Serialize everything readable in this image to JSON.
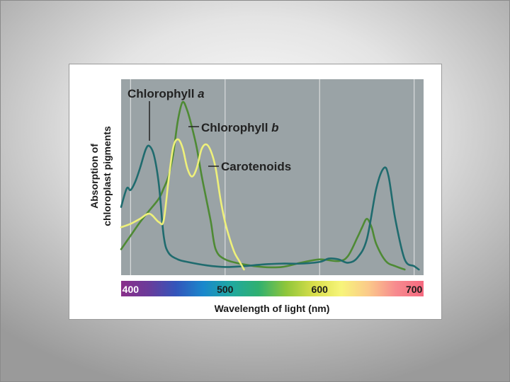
{
  "chart_data": {
    "type": "line",
    "xlabel": "Wavelength of light (nm)",
    "ylabel_line1": "Absorption of",
    "ylabel_line2": "chloroplast pigments",
    "xlim": [
      390,
      710
    ],
    "ylim": [
      0,
      1
    ],
    "x_ticks": [
      400,
      500,
      600,
      700
    ],
    "x_tick_labels": [
      "400",
      "500",
      "600",
      "700"
    ],
    "grid": true,
    "plot_background": "#9aa3a6",
    "series": [
      {
        "name": "Chlorophyll a",
        "name_main": "Chlorophyll ",
        "name_italic": "a",
        "color": "#1f6b6e",
        "points": [
          [
            390,
            0.37
          ],
          [
            396,
            0.48
          ],
          [
            400,
            0.47
          ],
          [
            405,
            0.52
          ],
          [
            410,
            0.6
          ],
          [
            416,
            0.71
          ],
          [
            420,
            0.73
          ],
          [
            425,
            0.67
          ],
          [
            430,
            0.5
          ],
          [
            435,
            0.2
          ],
          [
            440,
            0.1
          ],
          [
            450,
            0.06
          ],
          [
            460,
            0.045
          ],
          [
            480,
            0.025
          ],
          [
            500,
            0.015
          ],
          [
            520,
            0.02
          ],
          [
            540,
            0.03
          ],
          [
            560,
            0.035
          ],
          [
            580,
            0.035
          ],
          [
            600,
            0.045
          ],
          [
            610,
            0.065
          ],
          [
            620,
            0.06
          ],
          [
            630,
            0.04
          ],
          [
            640,
            0.07
          ],
          [
            650,
            0.18
          ],
          [
            660,
            0.48
          ],
          [
            668,
            0.6
          ],
          [
            673,
            0.55
          ],
          [
            680,
            0.3
          ],
          [
            690,
            0.06
          ],
          [
            700,
            0.02
          ],
          [
            705,
            0.0
          ]
        ]
      },
      {
        "name": "Chlorophyll b",
        "name_main": "Chlorophyll ",
        "name_italic": "b",
        "color": "#4e8a34",
        "points": [
          [
            390,
            0.12
          ],
          [
            400,
            0.2
          ],
          [
            410,
            0.28
          ],
          [
            420,
            0.35
          ],
          [
            430,
            0.42
          ],
          [
            435,
            0.48
          ],
          [
            440,
            0.55
          ],
          [
            445,
            0.68
          ],
          [
            450,
            0.88
          ],
          [
            455,
            0.99
          ],
          [
            460,
            0.94
          ],
          [
            465,
            0.84
          ],
          [
            470,
            0.72
          ],
          [
            475,
            0.56
          ],
          [
            480,
            0.42
          ],
          [
            485,
            0.28
          ],
          [
            490,
            0.12
          ],
          [
            500,
            0.06
          ],
          [
            520,
            0.03
          ],
          [
            540,
            0.015
          ],
          [
            560,
            0.015
          ],
          [
            580,
            0.04
          ],
          [
            600,
            0.06
          ],
          [
            620,
            0.05
          ],
          [
            630,
            0.08
          ],
          [
            640,
            0.19
          ],
          [
            645,
            0.25
          ],
          [
            650,
            0.3
          ],
          [
            655,
            0.25
          ],
          [
            660,
            0.15
          ],
          [
            670,
            0.05
          ],
          [
            680,
            0.02
          ],
          [
            690,
            0.0
          ]
        ]
      },
      {
        "name": "Carotenoids",
        "color": "#eef07a",
        "points": [
          [
            390,
            0.25
          ],
          [
            400,
            0.27
          ],
          [
            410,
            0.3
          ],
          [
            420,
            0.33
          ],
          [
            430,
            0.28
          ],
          [
            435,
            0.29
          ],
          [
            440,
            0.52
          ],
          [
            445,
            0.72
          ],
          [
            450,
            0.77
          ],
          [
            455,
            0.72
          ],
          [
            460,
            0.6
          ],
          [
            465,
            0.55
          ],
          [
            470,
            0.6
          ],
          [
            475,
            0.71
          ],
          [
            480,
            0.74
          ],
          [
            485,
            0.7
          ],
          [
            490,
            0.6
          ],
          [
            495,
            0.42
          ],
          [
            500,
            0.28
          ],
          [
            505,
            0.18
          ],
          [
            510,
            0.1
          ],
          [
            515,
            0.05
          ],
          [
            520,
            0.0
          ]
        ]
      }
    ],
    "spectrum_colors": [
      "#8a2f8a",
      "#6a3b9a",
      "#3355bb",
      "#1a88cc",
      "#20a8a0",
      "#2fb070",
      "#8fc63a",
      "#d8de4a",
      "#f7f57a",
      "#fbc98a",
      "#f78a8f",
      "#f5697f"
    ]
  }
}
